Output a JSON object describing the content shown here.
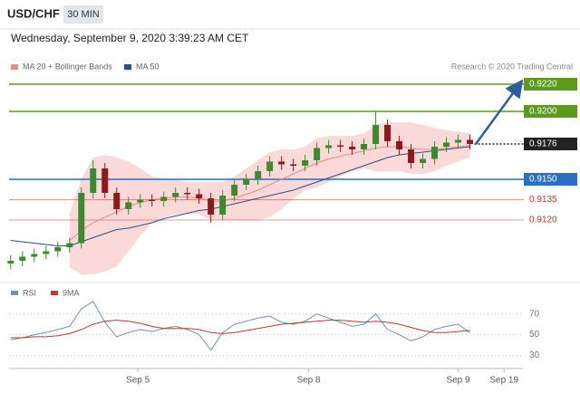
{
  "header": {
    "symbol": "USD/CHF",
    "timeframe": "30 MIN",
    "timestamp": "Wednesday, September 9, 2020 3:39:23 AM CET"
  },
  "chart_data": [
    {
      "type": "candlestick",
      "source": "Research © 2020 Trading Central",
      "up_color": "#3d8a2e",
      "down_color": "#8b1a1a",
      "open": [
        0.9088,
        0.909,
        0.9093,
        0.9095,
        0.9097,
        0.91,
        0.9103,
        0.914,
        0.9158,
        0.914,
        0.9128,
        0.9133,
        0.9135,
        0.9134,
        0.9137,
        0.914,
        0.9139,
        0.9136,
        0.9124,
        0.9138,
        0.9146,
        0.915,
        0.9156,
        0.9163,
        0.9161,
        0.916,
        0.9164,
        0.9173,
        0.9175,
        0.9174,
        0.9172,
        0.9176,
        0.919,
        0.9178,
        0.9172,
        0.9162,
        0.9165,
        0.9174,
        0.9177,
        0.9179
      ],
      "high": [
        0.9094,
        0.9097,
        0.9099,
        0.9101,
        0.9104,
        0.9107,
        0.9144,
        0.9164,
        0.9162,
        0.9144,
        0.9137,
        0.9139,
        0.9139,
        0.9141,
        0.9144,
        0.9144,
        0.9143,
        0.914,
        0.9142,
        0.915,
        0.9154,
        0.916,
        0.9167,
        0.9167,
        0.9165,
        0.9168,
        0.9177,
        0.9179,
        0.9179,
        0.9178,
        0.918,
        0.92,
        0.9194,
        0.9182,
        0.9176,
        0.9169,
        0.9178,
        0.9181,
        0.9183,
        0.9183
      ],
      "low": [
        0.9084,
        0.9086,
        0.9089,
        0.9091,
        0.9093,
        0.9096,
        0.9099,
        0.9136,
        0.9136,
        0.9124,
        0.9124,
        0.9129,
        0.913,
        0.913,
        0.9133,
        0.9135,
        0.9132,
        0.9118,
        0.912,
        0.9134,
        0.9142,
        0.9146,
        0.9152,
        0.9157,
        0.9156,
        0.9156,
        0.916,
        0.9169,
        0.917,
        0.9168,
        0.9168,
        0.9172,
        0.9174,
        0.9168,
        0.9158,
        0.9158,
        0.9161,
        0.917,
        0.9173,
        0.9172
      ],
      "close": [
        0.909,
        0.9093,
        0.9095,
        0.9097,
        0.91,
        0.9103,
        0.914,
        0.9158,
        0.914,
        0.9128,
        0.9133,
        0.9135,
        0.9134,
        0.9137,
        0.914,
        0.9139,
        0.9136,
        0.9124,
        0.9138,
        0.9146,
        0.915,
        0.9156,
        0.9163,
        0.9161,
        0.916,
        0.9164,
        0.9173,
        0.9175,
        0.9174,
        0.9172,
        0.9176,
        0.919,
        0.9178,
        0.9172,
        0.9162,
        0.9165,
        0.9174,
        0.9177,
        0.9179,
        0.9176
      ],
      "series": [
        {
          "name": "MA 20 + Bollinger Bands",
          "color": "#f08a8a",
          "band_color": "#fbd9d9",
          "values": [
            null,
            null,
            null,
            null,
            null,
            0.9105,
            0.9112,
            0.9118,
            0.9122,
            0.9126,
            0.913,
            0.9133,
            0.9135,
            0.9136,
            0.9137,
            0.9137,
            0.9136,
            0.9134,
            0.9134,
            0.9136,
            0.9139,
            0.9142,
            0.9146,
            0.915,
            0.9154,
            0.9158,
            0.9162,
            0.9165,
            0.9167,
            0.9169,
            0.9171,
            0.9173,
            0.9174,
            0.9174,
            0.9173,
            0.9172,
            0.9172,
            0.9173,
            0.9174,
            0.9175
          ],
          "upper": [
            null,
            null,
            null,
            null,
            null,
            0.9125,
            0.915,
            0.9166,
            0.9168,
            0.9166,
            0.9163,
            0.9158,
            0.9152,
            0.915,
            0.915,
            0.9148,
            0.9148,
            0.9148,
            0.9148,
            0.9152,
            0.9158,
            0.9164,
            0.917,
            0.9172,
            0.9172,
            0.9174,
            0.918,
            0.9182,
            0.9182,
            0.9182,
            0.9184,
            0.919,
            0.9192,
            0.9192,
            0.9192,
            0.919,
            0.9188,
            0.9186,
            0.9185,
            0.9184
          ],
          "lower": [
            null,
            null,
            null,
            null,
            null,
            0.9085,
            0.908,
            0.908,
            0.9082,
            0.9086,
            0.9097,
            0.9108,
            0.9118,
            0.9122,
            0.9124,
            0.9125,
            0.9124,
            0.912,
            0.912,
            0.912,
            0.912,
            0.912,
            0.9122,
            0.9128,
            0.9136,
            0.9142,
            0.9144,
            0.9148,
            0.9152,
            0.9156,
            0.9158,
            0.9156,
            0.9156,
            0.9156,
            0.9154,
            0.9154,
            0.9156,
            0.916,
            0.9163,
            0.9166
          ]
        },
        {
          "name": "MA 50",
          "color": "#2c4f86",
          "values": [
            0.9105,
            0.9104,
            0.9103,
            0.9102,
            0.9101,
            0.9101,
            0.9104,
            0.9107,
            0.911,
            0.9113,
            0.9114,
            0.9116,
            0.9118,
            0.9121,
            0.9123,
            0.9125,
            0.9127,
            0.9128,
            0.913,
            0.9132,
            0.9134,
            0.9136,
            0.9138,
            0.914,
            0.9142,
            0.9145,
            0.9148,
            0.9151,
            0.9154,
            0.9157,
            0.916,
            0.9163,
            0.9166,
            0.9168,
            0.9169,
            0.917,
            0.9171,
            0.9172,
            0.9173,
            0.9174
          ]
        }
      ],
      "levels": [
        {
          "value": 0.922,
          "label": "0.9220",
          "color": "#5b9a1c",
          "style": "box"
        },
        {
          "value": 0.92,
          "label": "0.9200",
          "color": "#5b9a1c",
          "style": "box"
        },
        {
          "value": 0.9176,
          "label": "0.9176",
          "color": "#222222",
          "style": "dotted"
        },
        {
          "value": 0.915,
          "label": "0.9150",
          "color": "#2a6fc4",
          "style": "box"
        },
        {
          "value": 0.9135,
          "label": "0.9135",
          "color": "#c0392b",
          "style": "text"
        },
        {
          "value": 0.912,
          "label": "0.9120",
          "color": "#c0392b",
          "style": "text"
        }
      ],
      "arrow": {
        "color": "#2f5f9a",
        "x": [
          39.5,
          43.3
        ],
        "y": [
          0.9176,
          0.9221
        ]
      },
      "xlim": [
        -0.6,
        43.5
      ],
      "ylim": [
        0.9082,
        0.92253
      ]
    },
    {
      "type": "line",
      "series": [
        {
          "name": "RSI",
          "color": "#6f8fb5",
          "values": [
            45,
            47,
            50,
            52,
            55,
            58,
            75,
            82,
            62,
            48,
            52,
            55,
            53,
            56,
            58,
            55,
            50,
            35,
            52,
            60,
            63,
            66,
            68,
            62,
            60,
            63,
            70,
            66,
            62,
            58,
            60,
            70,
            55,
            50,
            44,
            48,
            55,
            58,
            60,
            52
          ]
        },
        {
          "name": "9MA",
          "color": "#c0392b",
          "values": [
            47,
            47,
            48,
            48,
            49,
            51,
            55,
            60,
            63,
            64,
            63,
            61,
            58,
            56,
            56,
            56,
            55,
            52,
            51,
            52,
            54,
            56,
            58,
            60,
            61,
            62,
            63,
            64,
            64,
            63,
            62,
            63,
            62,
            60,
            57,
            54,
            52,
            52,
            53,
            54
          ]
        }
      ],
      "xlim": [
        -0.6,
        43.5
      ],
      "ylim": [
        19,
        89
      ],
      "yticks": [
        30,
        50,
        70
      ],
      "grid": true,
      "xticks": [
        {
          "value": 10.8,
          "label": "Sep 5"
        },
        {
          "value": 25.3,
          "label": "Sep 8"
        },
        {
          "value": 38,
          "label": "Sep 9"
        },
        {
          "value": 41.9,
          "label": "Sep 19"
        }
      ]
    }
  ]
}
